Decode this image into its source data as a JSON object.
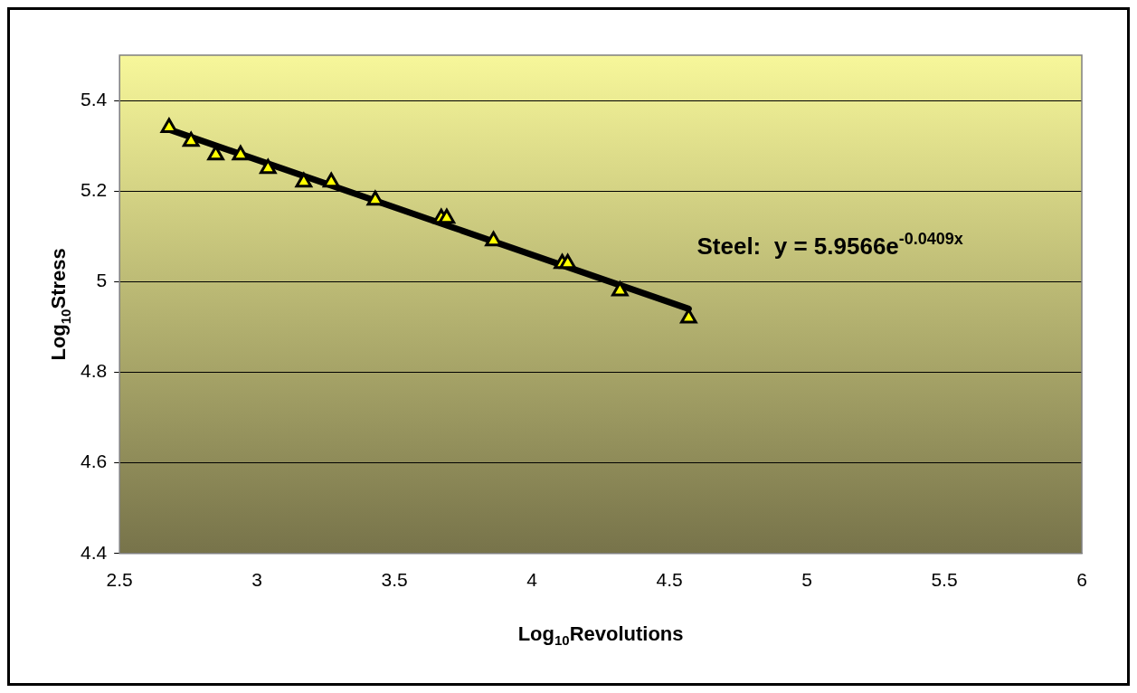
{
  "chart_data": {
    "type": "scatter",
    "xlabel": "Log$_{10}$Revolutions",
    "ylabel": "Log$_{10}$Stress",
    "series": [
      {
        "color": "#ffff00",
        "marker": "triangle",
        "x": [
          2.68,
          2.76,
          2.85,
          2.94,
          3.04,
          3.17,
          3.27,
          3.43,
          3.67,
          3.69,
          3.86,
          4.11,
          4.13,
          4.32,
          4.57
        ],
        "values": [
          5.34,
          5.31,
          5.28,
          5.28,
          5.25,
          5.22,
          5.22,
          5.18,
          5.14,
          5.14,
          5.09,
          5.04,
          5.04,
          4.98,
          4.92
        ]
      },
      {
        "type": "line",
        "color": "#000000",
        "marker": "none",
        "x": [
          2.68,
          4.57
        ],
        "values": [
          5.336,
          4.94
        ]
      }
    ],
    "xlim": [
      2.5,
      6
    ],
    "xticks": [
      2.5,
      3,
      3.5,
      4,
      4.5,
      5,
      5.5,
      6
    ],
    "ylim": [
      4.4,
      5.5
    ],
    "yticks": [
      4.4,
      4.6,
      4.8,
      5,
      5.2,
      5.4
    ],
    "grid": "y",
    "annotations": [
      "Steel:  y = 5.9566e$^{-0.0409x}$"
    ]
  }
}
